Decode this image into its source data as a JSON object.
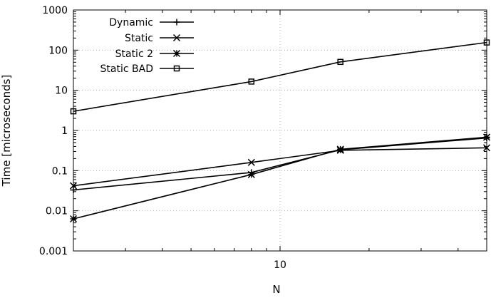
{
  "chart_data": {
    "type": "line",
    "title": "",
    "xlabel": "N",
    "ylabel": "Time [microseconds]",
    "xscale": "log",
    "yscale": "log",
    "xlim": [
      2,
      50
    ],
    "ylim": [
      0.001,
      1000
    ],
    "grid": true,
    "legend_position": "top-left",
    "x_ticks": [
      {
        "value": 10,
        "label": "10"
      }
    ],
    "y_ticks": [
      {
        "value": 0.001,
        "label": "0.001"
      },
      {
        "value": 0.01,
        "label": "0.01"
      },
      {
        "value": 0.1,
        "label": "0.1"
      },
      {
        "value": 1,
        "label": "1"
      },
      {
        "value": 10,
        "label": "10"
      },
      {
        "value": 100,
        "label": "100"
      },
      {
        "value": 1000,
        "label": "1000"
      }
    ],
    "series": [
      {
        "name": "Dynamic",
        "marker": "plus",
        "x": [
          2,
          8,
          16,
          50
        ],
        "y": [
          0.033,
          0.09,
          0.33,
          0.65
        ]
      },
      {
        "name": "Static",
        "marker": "cross",
        "x": [
          2,
          8,
          16,
          50
        ],
        "y": [
          0.042,
          0.16,
          0.32,
          0.37
        ]
      },
      {
        "name": "Static 2",
        "marker": "star",
        "x": [
          2,
          8,
          16,
          50
        ],
        "y": [
          0.0063,
          0.08,
          0.34,
          0.68
        ]
      },
      {
        "name": "Static BAD",
        "marker": "square",
        "x": [
          2,
          8,
          16,
          50
        ],
        "y": [
          3.0,
          16.5,
          51,
          155
        ]
      }
    ]
  }
}
